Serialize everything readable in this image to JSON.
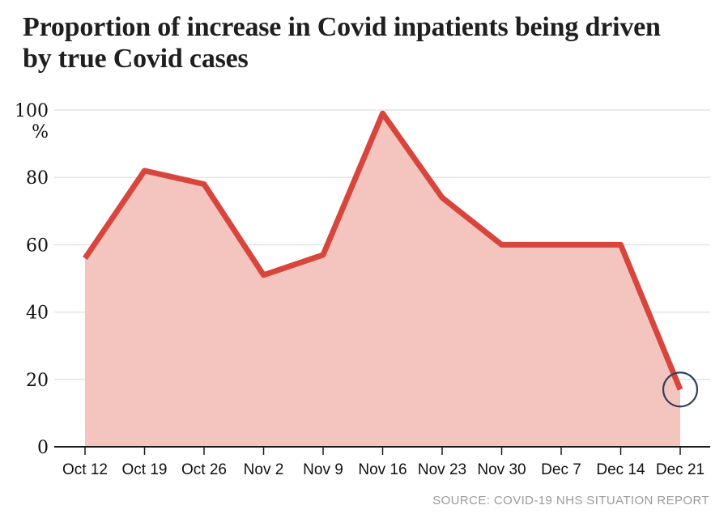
{
  "header": {
    "title": "Proportion of increase in Covid inpatients being driven by true Covid cases"
  },
  "footer": {
    "source": "SOURCE: COVID-19 NHS SITUATION REPORT"
  },
  "chart_data": {
    "type": "area",
    "title": "Proportion of increase in Covid inpatients being driven by true Covid cases",
    "categories": [
      "Oct 12",
      "Oct 19",
      "Oct 26",
      "Nov 2",
      "Nov 9",
      "Nov 16",
      "Nov 23",
      "Nov 30",
      "Dec 7",
      "Dec 14",
      "Dec 21"
    ],
    "values": [
      56,
      82,
      78,
      51,
      57,
      99,
      74,
      60,
      60,
      60,
      17
    ],
    "unit_label": "%",
    "ylim": [
      0,
      100
    ],
    "yticks": [
      0,
      20,
      40,
      60,
      80,
      100
    ],
    "grid": true,
    "legend": "none",
    "colors": {
      "line": "#d8453c",
      "fill": "#f4c5bf",
      "grid": "#e4e4e4",
      "axis": "#1a1a1a",
      "tick_text": "#111111",
      "annotation_circle": "#2f3e5c"
    },
    "annotation": {
      "type": "circle",
      "category": "Dec 21",
      "value": 17
    }
  }
}
